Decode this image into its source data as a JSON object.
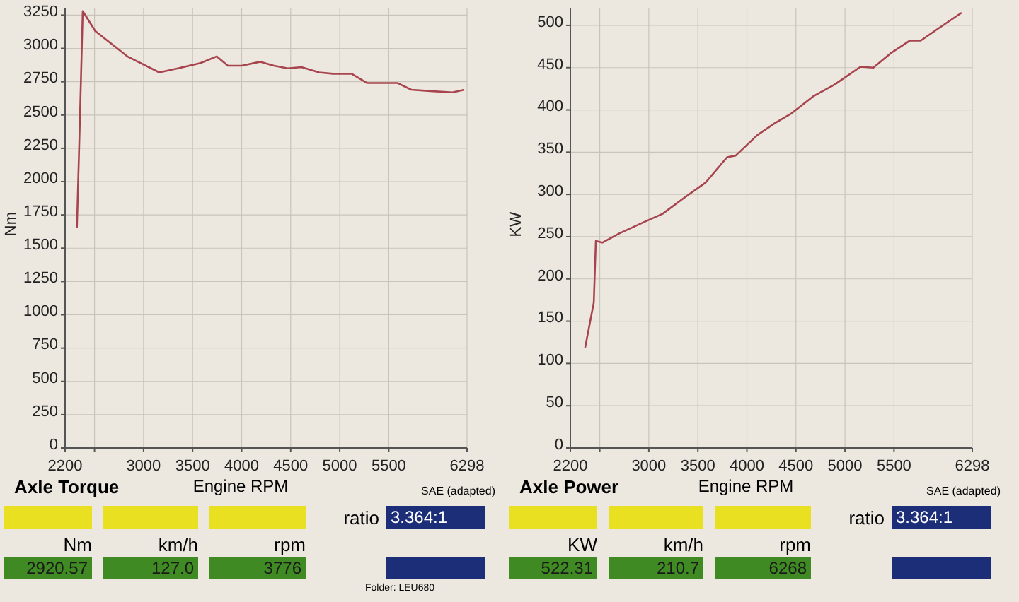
{
  "chart_data": [
    {
      "type": "line",
      "title": "Axle Torque",
      "xlabel": "Engine RPM",
      "ylabel": "Nm",
      "grid": true,
      "marker": "none",
      "line_style": "solid",
      "xlim": [
        2200,
        6298
      ],
      "xticks": [
        2200,
        {
          "value": 2500,
          "label": null
        },
        3000,
        3500,
        4000,
        4500,
        5000,
        5500,
        6298
      ],
      "ylim": [
        0,
        3300
      ],
      "yticks": [
        0,
        250,
        500,
        750,
        1000,
        1250,
        1500,
        1750,
        2000,
        2250,
        2500,
        2750,
        3000,
        3250
      ],
      "series": [
        {
          "color": "#a8444e",
          "x": [
            2320,
            2345,
            2380,
            2508,
            2835,
            3160,
            3350,
            3580,
            3745,
            3860,
            4000,
            4190,
            4330,
            4470,
            4610,
            4790,
            4930,
            5120,
            5280,
            5590,
            5730,
            5920,
            6150,
            6270
          ],
          "values": [
            1650,
            2300,
            3280,
            3130,
            2940,
            2820,
            2850,
            2890,
            2940,
            2870,
            2870,
            2900,
            2870,
            2850,
            2860,
            2820,
            2810,
            2810,
            2740,
            2740,
            2690,
            2680,
            2670,
            2690
          ]
        }
      ],
      "annotations": [
        "SAE (adapted)",
        "ratio",
        "3.364:1",
        "Nm",
        "km/h",
        "rpm",
        "2920.57",
        "127.0",
        "3776",
        "Folder: LEU680"
      ]
    },
    {
      "type": "line",
      "title": "Axle Power",
      "xlabel": "Engine RPM",
      "ylabel": "KW",
      "grid": true,
      "marker": "none",
      "line_style": "solid",
      "xlim": [
        2200,
        6298
      ],
      "xticks": [
        2200,
        {
          "value": 2500,
          "label": null
        },
        3000,
        3500,
        4000,
        4500,
        5000,
        5500,
        6298
      ],
      "ylim": [
        0,
        520
      ],
      "yticks": [
        0,
        50,
        100,
        150,
        200,
        250,
        300,
        350,
        400,
        450,
        500
      ],
      "series": [
        {
          "color": "#a8444e",
          "x": [
            2351,
            2439,
            2460,
            2526,
            2702,
            2965,
            3140,
            3360,
            3579,
            3798,
            3886,
            4105,
            4281,
            4456,
            4675,
            4895,
            5158,
            5289,
            5465,
            5662,
            5772,
            5947,
            6189
          ],
          "values": [
            119,
            172,
            245,
            243,
            254,
            268,
            277,
            296,
            314,
            344,
            346,
            370,
            384,
            396,
            416,
            430,
            451,
            450,
            467,
            482,
            482,
            496,
            515
          ]
        }
      ],
      "annotations": [
        "SAE (adapted)",
        "ratio",
        "3.364:1",
        "KW",
        "km/h",
        "rpm",
        "522.31",
        "210.7",
        "6268"
      ]
    }
  ]
}
